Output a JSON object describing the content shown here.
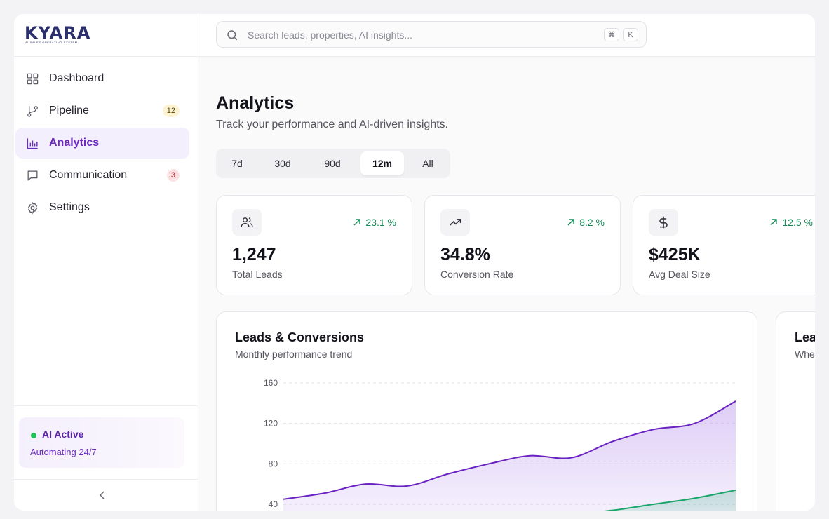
{
  "brand": {
    "name": "KYARA",
    "tagline": "AI Sales Operating System"
  },
  "sidebar": {
    "items": [
      {
        "label": "Dashboard",
        "icon": "grid-icon",
        "active": false
      },
      {
        "label": "Pipeline",
        "icon": "git-branch-icon",
        "active": false,
        "badge": "12",
        "badge_color": "#fdf3d2"
      },
      {
        "label": "Analytics",
        "icon": "bar-chart-icon",
        "active": true
      },
      {
        "label": "Communication",
        "icon": "message-square-icon",
        "active": false,
        "badge": "3",
        "badge_color": "#fde2e4"
      },
      {
        "label": "Settings",
        "icon": "gear-icon",
        "active": false
      }
    ],
    "ai_status": {
      "title": "AI Active",
      "subtitle": "Automating 24/7",
      "dot_color": "#22c05a"
    },
    "collapse_icon": "chevron-left-icon"
  },
  "search": {
    "placeholder": "Search leads, properties, AI insights...",
    "value": "",
    "shortcut": [
      "⌘",
      "K"
    ]
  },
  "page": {
    "title": "Analytics",
    "subtitle": "Track your performance and AI-driven insights."
  },
  "range_tabs": {
    "options": [
      "7d",
      "30d",
      "90d",
      "12m",
      "All"
    ],
    "selected": "12m"
  },
  "stats": [
    {
      "icon": "users-icon",
      "value": "1,247",
      "label": "Total Leads",
      "delta": "23.1 %"
    },
    {
      "icon": "trending-up-icon",
      "value": "34.8%",
      "label": "Conversion Rate",
      "delta": "8.2 %"
    },
    {
      "icon": "dollar-icon",
      "value": "$425K",
      "label": "Avg Deal Size",
      "delta": "12.5 %"
    }
  ],
  "colors": {
    "accent": "#6b2bbd",
    "positive": "#138a57",
    "leads_line": "#6a22c2",
    "conversions_line": "#19a66a"
  },
  "chart_data": {
    "type": "area",
    "title": "Leads & Conversions",
    "subtitle": "Monthly performance trend",
    "xlabel": "",
    "ylabel": "",
    "ylim": [
      40,
      160
    ],
    "yticks": [
      40,
      80,
      120,
      160
    ],
    "grid": true,
    "x": [
      0,
      1,
      2,
      3,
      4,
      5,
      6,
      7,
      8,
      9,
      10,
      11
    ],
    "series": [
      {
        "values": [
          45,
          51,
          60,
          58,
          70,
          80,
          88,
          86,
          102,
          114,
          120,
          142
        ]
      },
      {
        "values": [
          null,
          null,
          null,
          null,
          null,
          null,
          null,
          30,
          34,
          40,
          46,
          54
        ]
      }
    ]
  },
  "side_card": {
    "title": "Lea",
    "subtitle": "Whe"
  }
}
